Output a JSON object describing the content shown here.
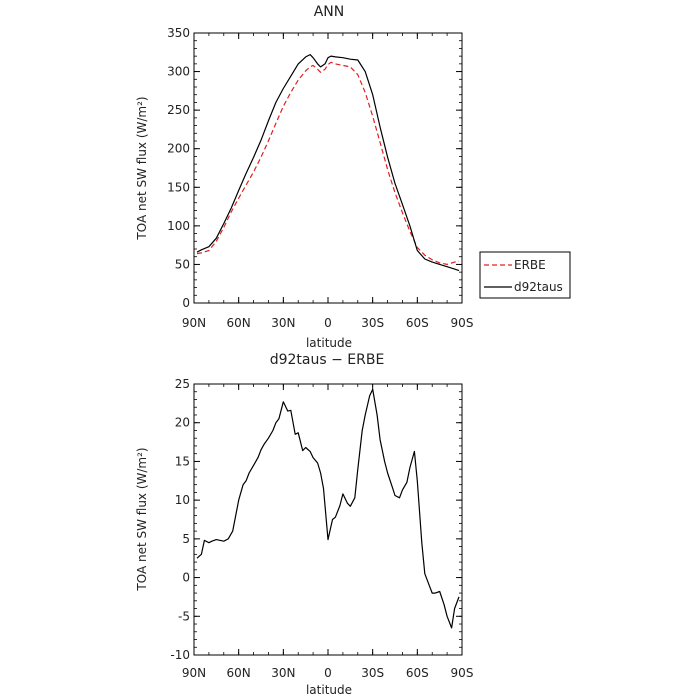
{
  "chart_data": [
    {
      "type": "line",
      "title": "ANN",
      "xlabel": "latitude",
      "ylabel": "TOA net SW flux (W/m²)",
      "xlim": [
        90,
        -90
      ],
      "ylim": [
        0,
        350
      ],
      "x_ticks": [
        90,
        60,
        30,
        0,
        -30,
        -60,
        -90
      ],
      "x_tick_labels": [
        "90N",
        "60N",
        "30N",
        "0",
        "30S",
        "60S",
        "90S"
      ],
      "y_ticks": [
        0,
        50,
        100,
        150,
        200,
        250,
        300,
        350
      ],
      "grid": false,
      "legend_position": "right",
      "series": [
        {
          "name": "ERBE",
          "color": "#e02020",
          "style": "dashed",
          "x": [
            88,
            85,
            80,
            75,
            70,
            65,
            60,
            55,
            50,
            45,
            40,
            35,
            30,
            25,
            20,
            15,
            12,
            10,
            7,
            5,
            2,
            0,
            -2,
            -5,
            -10,
            -15,
            -20,
            -25,
            -30,
            -35,
            -40,
            -45,
            -50,
            -55,
            -60,
            -65,
            -70,
            -75,
            -80,
            -85,
            -88
          ],
          "y": [
            64,
            65,
            68,
            80,
            98,
            118,
            136,
            153,
            170,
            189,
            210,
            233,
            255,
            273,
            289,
            301,
            306,
            308,
            303,
            299,
            303,
            309,
            312,
            310,
            308,
            306,
            296,
            273,
            242,
            208,
            173,
            143,
            117,
            93,
            72,
            62,
            56,
            52,
            50,
            53,
            54
          ]
        },
        {
          "name": "d92taus",
          "color": "#000000",
          "style": "solid",
          "x": [
            88,
            85,
            80,
            75,
            70,
            65,
            60,
            55,
            50,
            45,
            40,
            35,
            30,
            25,
            20,
            15,
            12,
            10,
            7,
            5,
            2,
            0,
            -2,
            -5,
            -10,
            -15,
            -20,
            -25,
            -30,
            -35,
            -40,
            -45,
            -50,
            -55,
            -60,
            -65,
            -70,
            -75,
            -80,
            -85,
            -88
          ],
          "y": [
            66,
            69,
            73,
            84,
            103,
            123,
            146,
            168,
            189,
            211,
            236,
            260,
            278,
            294,
            310,
            319,
            322,
            318,
            310,
            306,
            310,
            318,
            320,
            319,
            318,
            316,
            315,
            300,
            270,
            228,
            189,
            155,
            128,
            100,
            68,
            57,
            53,
            50,
            47,
            44,
            42
          ]
        }
      ]
    },
    {
      "type": "line",
      "title": "d92taus − ERBE",
      "xlabel": "latitude",
      "ylabel": "TOA net SW flux (W/m²)",
      "xlim": [
        90,
        -90
      ],
      "ylim": [
        -10,
        25
      ],
      "x_ticks": [
        90,
        60,
        30,
        0,
        -30,
        -60,
        -90
      ],
      "x_tick_labels": [
        "90N",
        "60N",
        "30N",
        "0",
        "30S",
        "60S",
        "90S"
      ],
      "y_ticks": [
        -10,
        -5,
        0,
        5,
        10,
        15,
        20,
        25
      ],
      "grid": false,
      "series": [
        {
          "color": "#000000",
          "style": "solid",
          "x": [
            88,
            85,
            83,
            80,
            78,
            75,
            70,
            67,
            64,
            60,
            57,
            55,
            53,
            50,
            47,
            45,
            43,
            40,
            37,
            35,
            33,
            30,
            27,
            25,
            22,
            20,
            17,
            15,
            12,
            10,
            7,
            5,
            3,
            0,
            -3,
            -5,
            -8,
            -10,
            -13,
            -15,
            -18,
            -20,
            -23,
            -25,
            -28,
            -30,
            -33,
            -35,
            -38,
            -40,
            -43,
            -45,
            -48,
            -50,
            -53,
            -55,
            -58,
            -60,
            -63,
            -65,
            -68,
            -70,
            -72,
            -75,
            -78,
            -80,
            -83,
            -85,
            -88
          ],
          "y": [
            2.5,
            3.0,
            4.8,
            4.5,
            4.7,
            4.9,
            4.7,
            5.0,
            6.0,
            10.0,
            12.0,
            12.5,
            13.5,
            14.5,
            15.5,
            16.5,
            17.2,
            18.0,
            19.0,
            20.0,
            20.5,
            22.7,
            21.5,
            21.6,
            18.5,
            18.7,
            16.4,
            16.8,
            16.3,
            15.5,
            14.8,
            13.5,
            11.5,
            4.9,
            7.5,
            7.8,
            9.3,
            10.8,
            9.6,
            9.2,
            10.3,
            14.0,
            19.0,
            21.0,
            23.5,
            24.3,
            21.0,
            17.8,
            15.0,
            13.5,
            11.8,
            10.6,
            10.3,
            11.3,
            12.3,
            14.2,
            16.3,
            12.5,
            4.5,
            0.5,
            -1.0,
            -2.0,
            -2.0,
            -1.8,
            -3.5,
            -5.0,
            -6.5,
            -4.0,
            -2.5
          ]
        }
      ]
    }
  ]
}
